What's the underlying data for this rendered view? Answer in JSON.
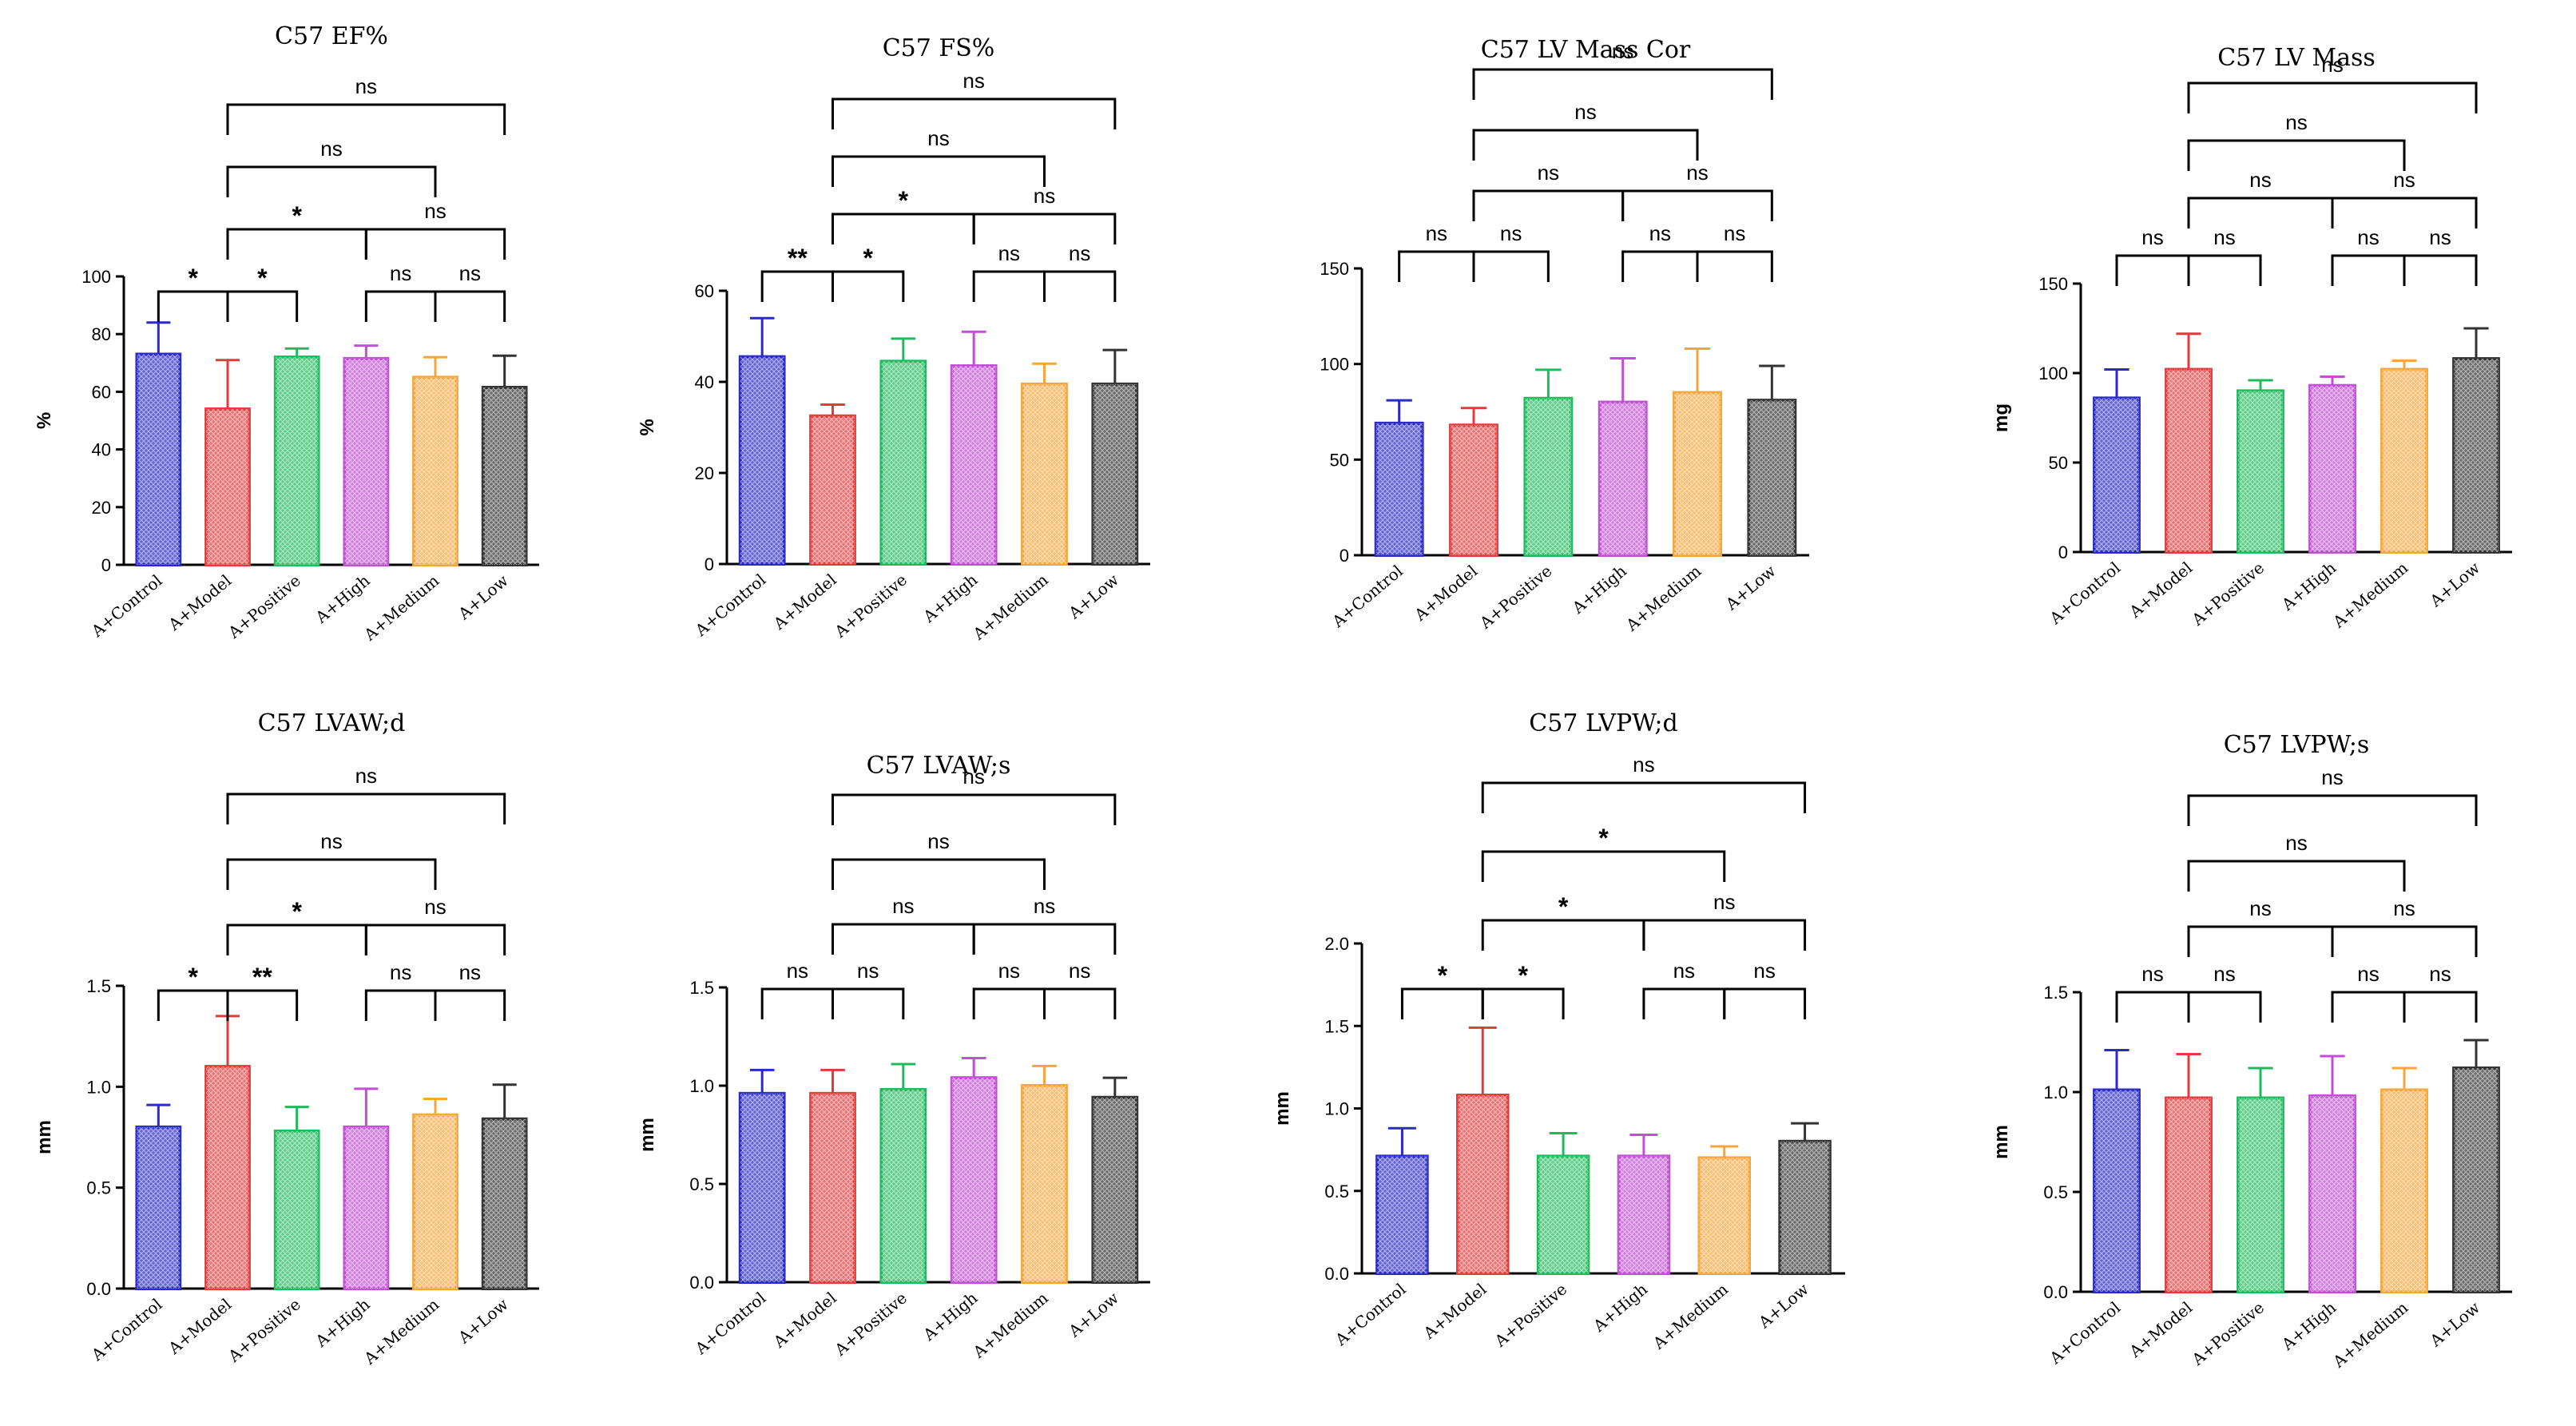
{
  "colors": {
    "A+Control": "#2a2ac8",
    "A+Model": "#e23b3b",
    "A+Positive": "#1fba5c",
    "A+High": "#c24ed6",
    "A+Medium": "#f5a53a",
    "A+Low": "#333333"
  },
  "chart_data": [
    {
      "type": "bar",
      "title": "C57 EF%",
      "ylabel": "%",
      "categories": [
        "A+Control",
        "A+Model",
        "A+Positive",
        "A+High",
        "A+Medium",
        "A+Low"
      ],
      "values": [
        73,
        54,
        72,
        71.5,
        65,
        61.5
      ],
      "errors": [
        11,
        17,
        3,
        4.5,
        7,
        11
      ],
      "ylim": [
        0,
        100
      ],
      "yticks": [
        0,
        20,
        40,
        60,
        80,
        100
      ],
      "brackets": [
        {
          "from": 0,
          "to": 1,
          "label": "*"
        },
        {
          "from": 1,
          "to": 2,
          "label": "*"
        },
        {
          "from": 3,
          "to": 4,
          "label": "ns"
        },
        {
          "from": 4,
          "to": 5,
          "label": "ns"
        },
        {
          "from": 1,
          "to": 3,
          "label": "*"
        },
        {
          "from": 3,
          "to": 5,
          "label": "ns"
        },
        {
          "from": 1,
          "to": 4,
          "label": "ns"
        },
        {
          "from": 1,
          "to": 5,
          "label": "ns"
        }
      ]
    },
    {
      "type": "bar",
      "title": "C57 FS%",
      "ylabel": "%",
      "categories": [
        "A+Control",
        "A+Model",
        "A+Positive",
        "A+High",
        "A+Medium",
        "A+Low"
      ],
      "values": [
        45.5,
        32.5,
        44.5,
        43.5,
        39.5,
        39.5
      ],
      "errors": [
        8.5,
        2.5,
        5,
        7.5,
        4.5,
        7.5
      ],
      "ylim": [
        0,
        60
      ],
      "yticks": [
        0,
        20,
        40,
        60
      ],
      "brackets": [
        {
          "from": 0,
          "to": 1,
          "label": "**"
        },
        {
          "from": 1,
          "to": 2,
          "label": "*"
        },
        {
          "from": 3,
          "to": 4,
          "label": "ns"
        },
        {
          "from": 4,
          "to": 5,
          "label": "ns"
        },
        {
          "from": 1,
          "to": 3,
          "label": "*"
        },
        {
          "from": 3,
          "to": 5,
          "label": "ns"
        },
        {
          "from": 1,
          "to": 4,
          "label": "ns"
        },
        {
          "from": 1,
          "to": 5,
          "label": "ns"
        }
      ]
    },
    {
      "type": "bar",
      "title": "C57 LV Mass Cor",
      "ylabel": "",
      "categories": [
        "A+Control",
        "A+Model",
        "A+Positive",
        "A+High",
        "A+Medium",
        "A+Low"
      ],
      "values": [
        69,
        68,
        82,
        80,
        85,
        81
      ],
      "errors": [
        12,
        9,
        15,
        23,
        23,
        18
      ],
      "ylim": [
        0,
        150
      ],
      "yticks": [
        0,
        50,
        100,
        150
      ],
      "brackets": [
        {
          "from": 0,
          "to": 1,
          "label": "ns"
        },
        {
          "from": 1,
          "to": 2,
          "label": "ns"
        },
        {
          "from": 3,
          "to": 4,
          "label": "ns"
        },
        {
          "from": 4,
          "to": 5,
          "label": "ns"
        },
        {
          "from": 1,
          "to": 3,
          "label": "ns"
        },
        {
          "from": 3,
          "to": 5,
          "label": "ns"
        },
        {
          "from": 1,
          "to": 4,
          "label": "ns"
        },
        {
          "from": 1,
          "to": 5,
          "label": "ns"
        }
      ]
    },
    {
      "type": "bar",
      "title": "C57 LV Mass",
      "ylabel": "mg",
      "categories": [
        "A+Control",
        "A+Model",
        "A+Positive",
        "A+High",
        "A+Medium",
        "A+Low"
      ],
      "values": [
        86,
        102,
        90,
        93,
        102,
        108
      ],
      "errors": [
        16,
        20,
        6,
        5,
        5,
        17
      ],
      "ylim": [
        0,
        150
      ],
      "yticks": [
        0,
        50,
        100,
        150
      ],
      "brackets": [
        {
          "from": 0,
          "to": 1,
          "label": "ns"
        },
        {
          "from": 1,
          "to": 2,
          "label": "ns"
        },
        {
          "from": 3,
          "to": 4,
          "label": "ns"
        },
        {
          "from": 4,
          "to": 5,
          "label": "ns"
        },
        {
          "from": 1,
          "to": 3,
          "label": "ns"
        },
        {
          "from": 3,
          "to": 5,
          "label": "ns"
        },
        {
          "from": 1,
          "to": 4,
          "label": "ns"
        },
        {
          "from": 1,
          "to": 5,
          "label": "ns"
        }
      ]
    },
    {
      "type": "bar",
      "title": "C57 LVAW;d",
      "ylabel": "mm",
      "categories": [
        "A+Control",
        "A+Model",
        "A+Positive",
        "A+High",
        "A+Medium",
        "A+Low"
      ],
      "values": [
        0.8,
        1.1,
        0.78,
        0.8,
        0.86,
        0.84
      ],
      "errors": [
        0.11,
        0.25,
        0.12,
        0.19,
        0.08,
        0.17
      ],
      "ylim": [
        0,
        1.5
      ],
      "yticks": [
        0,
        0.5,
        1,
        1.5
      ],
      "ytick_labels": [
        "0.0",
        "0.5",
        "1.0",
        "1.5"
      ],
      "brackets": [
        {
          "from": 0,
          "to": 1,
          "label": "*"
        },
        {
          "from": 1,
          "to": 2,
          "label": "**"
        },
        {
          "from": 3,
          "to": 4,
          "label": "ns"
        },
        {
          "from": 4,
          "to": 5,
          "label": "ns"
        },
        {
          "from": 1,
          "to": 3,
          "label": "*"
        },
        {
          "from": 3,
          "to": 5,
          "label": "ns"
        },
        {
          "from": 1,
          "to": 4,
          "label": "ns"
        },
        {
          "from": 1,
          "to": 5,
          "label": "ns"
        }
      ]
    },
    {
      "type": "bar",
      "title": "C57 LVAW;s",
      "ylabel": "mm",
      "categories": [
        "A+Control",
        "A+Model",
        "A+Positive",
        "A+High",
        "A+Medium",
        "A+Low"
      ],
      "values": [
        0.96,
        0.96,
        0.98,
        1.04,
        1.0,
        0.94
      ],
      "errors": [
        0.12,
        0.12,
        0.13,
        0.1,
        0.1,
        0.1
      ],
      "ylim": [
        0,
        1.5
      ],
      "yticks": [
        0,
        0.5,
        1,
        1.5
      ],
      "ytick_labels": [
        "0.0",
        "0.5",
        "1.0",
        "1.5"
      ],
      "brackets": [
        {
          "from": 0,
          "to": 1,
          "label": "ns"
        },
        {
          "from": 1,
          "to": 2,
          "label": "ns"
        },
        {
          "from": 3,
          "to": 4,
          "label": "ns"
        },
        {
          "from": 4,
          "to": 5,
          "label": "ns"
        },
        {
          "from": 1,
          "to": 3,
          "label": "ns"
        },
        {
          "from": 3,
          "to": 5,
          "label": "ns"
        },
        {
          "from": 1,
          "to": 4,
          "label": "ns"
        },
        {
          "from": 1,
          "to": 5,
          "label": "ns"
        }
      ]
    },
    {
      "type": "bar",
      "title": "C57 LVPW;d",
      "ylabel": "mm",
      "categories": [
        "A+Control",
        "A+Model",
        "A+Positive",
        "A+High",
        "A+Medium",
        "A+Low"
      ],
      "values": [
        0.71,
        1.08,
        0.71,
        0.71,
        0.7,
        0.8
      ],
      "errors": [
        0.17,
        0.41,
        0.14,
        0.13,
        0.07,
        0.11
      ],
      "ylim": [
        0,
        2
      ],
      "yticks": [
        0,
        0.5,
        1,
        1.5,
        2
      ],
      "ytick_labels": [
        "0.0",
        "0.5",
        "1.0",
        "1.5",
        "2.0"
      ],
      "brackets": [
        {
          "from": 0,
          "to": 1,
          "label": "*"
        },
        {
          "from": 1,
          "to": 2,
          "label": "*"
        },
        {
          "from": 3,
          "to": 4,
          "label": "ns"
        },
        {
          "from": 4,
          "to": 5,
          "label": "ns"
        },
        {
          "from": 1,
          "to": 3,
          "label": "*"
        },
        {
          "from": 3,
          "to": 5,
          "label": "ns"
        },
        {
          "from": 1,
          "to": 4,
          "label": "*"
        },
        {
          "from": 1,
          "to": 5,
          "label": "ns"
        }
      ]
    },
    {
      "type": "bar",
      "title": "C57 LVPW;s",
      "ylabel": "mm",
      "categories": [
        "A+Control",
        "A+Model",
        "A+Positive",
        "A+High",
        "A+Medium",
        "A+Low"
      ],
      "values": [
        1.01,
        0.97,
        0.97,
        0.98,
        1.01,
        1.12
      ],
      "errors": [
        0.2,
        0.22,
        0.15,
        0.2,
        0.11,
        0.14
      ],
      "ylim": [
        0,
        1.5
      ],
      "yticks": [
        0,
        0.5,
        1,
        1.5
      ],
      "ytick_labels": [
        "0.0",
        "0.5",
        "1.0",
        "1.5"
      ],
      "brackets": [
        {
          "from": 0,
          "to": 1,
          "label": "ns"
        },
        {
          "from": 1,
          "to": 2,
          "label": "ns"
        },
        {
          "from": 3,
          "to": 4,
          "label": "ns"
        },
        {
          "from": 4,
          "to": 5,
          "label": "ns"
        },
        {
          "from": 1,
          "to": 3,
          "label": "ns"
        },
        {
          "from": 3,
          "to": 5,
          "label": "ns"
        },
        {
          "from": 1,
          "to": 4,
          "label": "ns"
        },
        {
          "from": 1,
          "to": 5,
          "label": "ns"
        }
      ]
    }
  ]
}
